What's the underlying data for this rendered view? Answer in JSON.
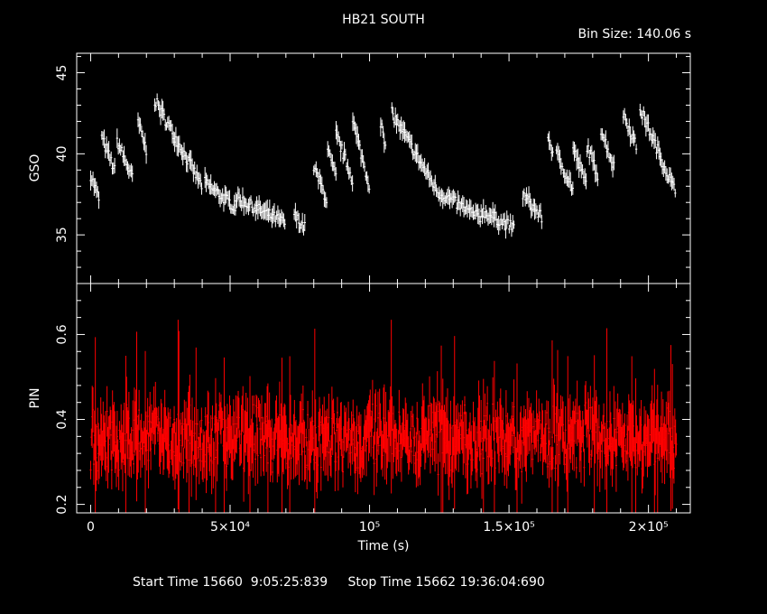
{
  "title": "HB21 SOUTH",
  "bin_size_label": "Bin Size: 140.06 s",
  "footer": {
    "start_label": "Start Time 15660  9:05:25:839",
    "stop_label": "Stop Time 15662 19:36:04:690"
  },
  "colors": {
    "background": "#000000",
    "gso": "#ffffff",
    "pin": "#ff0000",
    "axes": "#ffffff"
  },
  "chart_data": [
    {
      "type": "scatter",
      "panel": "top",
      "ylabel": "GSO",
      "xlim": [
        -5000,
        215000
      ],
      "ylim": [
        32,
        46.2
      ],
      "ytick_labels": [
        "35",
        "40",
        "45"
      ],
      "yticks": [
        35,
        40,
        45
      ],
      "color": "#ffffff",
      "error_bars": true,
      "description_of_shape": "three repeating decay cycles",
      "segments": [
        {
          "x0": 0,
          "x1": 3000,
          "y0": 38.7,
          "y1": 37.2
        },
        {
          "x0": 4000,
          "x1": 9000,
          "y0": 41.0,
          "y1": 38.8
        },
        {
          "x0": 9500,
          "x1": 15000,
          "y0": 40.8,
          "y1": 38.5
        },
        {
          "x0": 17000,
          "x1": 20000,
          "y0": 42.0,
          "y1": 40.2
        },
        {
          "x0": 23000,
          "x1": 40000,
          "y0": 43.3,
          "y1": 38.0
        },
        {
          "x0": 41000,
          "x1": 52000,
          "y0": 38.2,
          "y1": 36.7
        },
        {
          "x0": 52000,
          "x1": 70000,
          "y0": 37.3,
          "y1": 35.7
        },
        {
          "x0": 73000,
          "x1": 77000,
          "y0": 36.2,
          "y1": 35.4
        },
        {
          "x0": 80000,
          "x1": 85000,
          "y0": 39.2,
          "y1": 37.0
        },
        {
          "x0": 85000,
          "x1": 88000,
          "y0": 40.2,
          "y1": 38.5
        },
        {
          "x0": 88000,
          "x1": 94000,
          "y0": 41.2,
          "y1": 38.4
        },
        {
          "x0": 94000,
          "x1": 100000,
          "y0": 42.0,
          "y1": 38.0
        },
        {
          "x0": 104000,
          "x1": 106000,
          "y0": 42.0,
          "y1": 40.0
        },
        {
          "x0": 108000,
          "x1": 125000,
          "y0": 42.5,
          "y1": 37.5
        },
        {
          "x0": 125000,
          "x1": 140000,
          "y0": 37.6,
          "y1": 36.0
        },
        {
          "x0": 140000,
          "x1": 152000,
          "y0": 36.5,
          "y1": 35.4
        },
        {
          "x0": 155000,
          "x1": 162000,
          "y0": 37.5,
          "y1": 36.0
        },
        {
          "x0": 164000,
          "x1": 166000,
          "y0": 41.0,
          "y1": 40.0
        },
        {
          "x0": 167000,
          "x1": 173000,
          "y0": 40.0,
          "y1": 37.8
        },
        {
          "x0": 173000,
          "x1": 178000,
          "y0": 40.3,
          "y1": 38.0
        },
        {
          "x0": 178000,
          "x1": 182000,
          "y0": 40.5,
          "y1": 38.6
        },
        {
          "x0": 183000,
          "x1": 188000,
          "y0": 41.5,
          "y1": 39.0
        },
        {
          "x0": 191000,
          "x1": 196000,
          "y0": 42.5,
          "y1": 40.3
        },
        {
          "x0": 197000,
          "x1": 210000,
          "y0": 42.8,
          "y1": 37.5
        }
      ]
    },
    {
      "type": "scatter",
      "panel": "bottom",
      "ylabel": "PIN",
      "xlabel": "Time (s)",
      "xlim": [
        -5000,
        215000
      ],
      "ylim": [
        0.18,
        0.72
      ],
      "ytick_labels": [
        "0.2",
        "0.4",
        "0.6"
      ],
      "yticks": [
        0.2,
        0.4,
        0.6
      ],
      "xtick_labels": [
        "0",
        "5×10⁴",
        "10⁵",
        "1.5×10⁵",
        "2×10⁵"
      ],
      "xticks": [
        0,
        50000,
        100000,
        150000,
        200000
      ],
      "color": "#ff0000",
      "error_bars": true,
      "mean_value": 0.355,
      "x_range": [
        0,
        210000
      ]
    }
  ]
}
